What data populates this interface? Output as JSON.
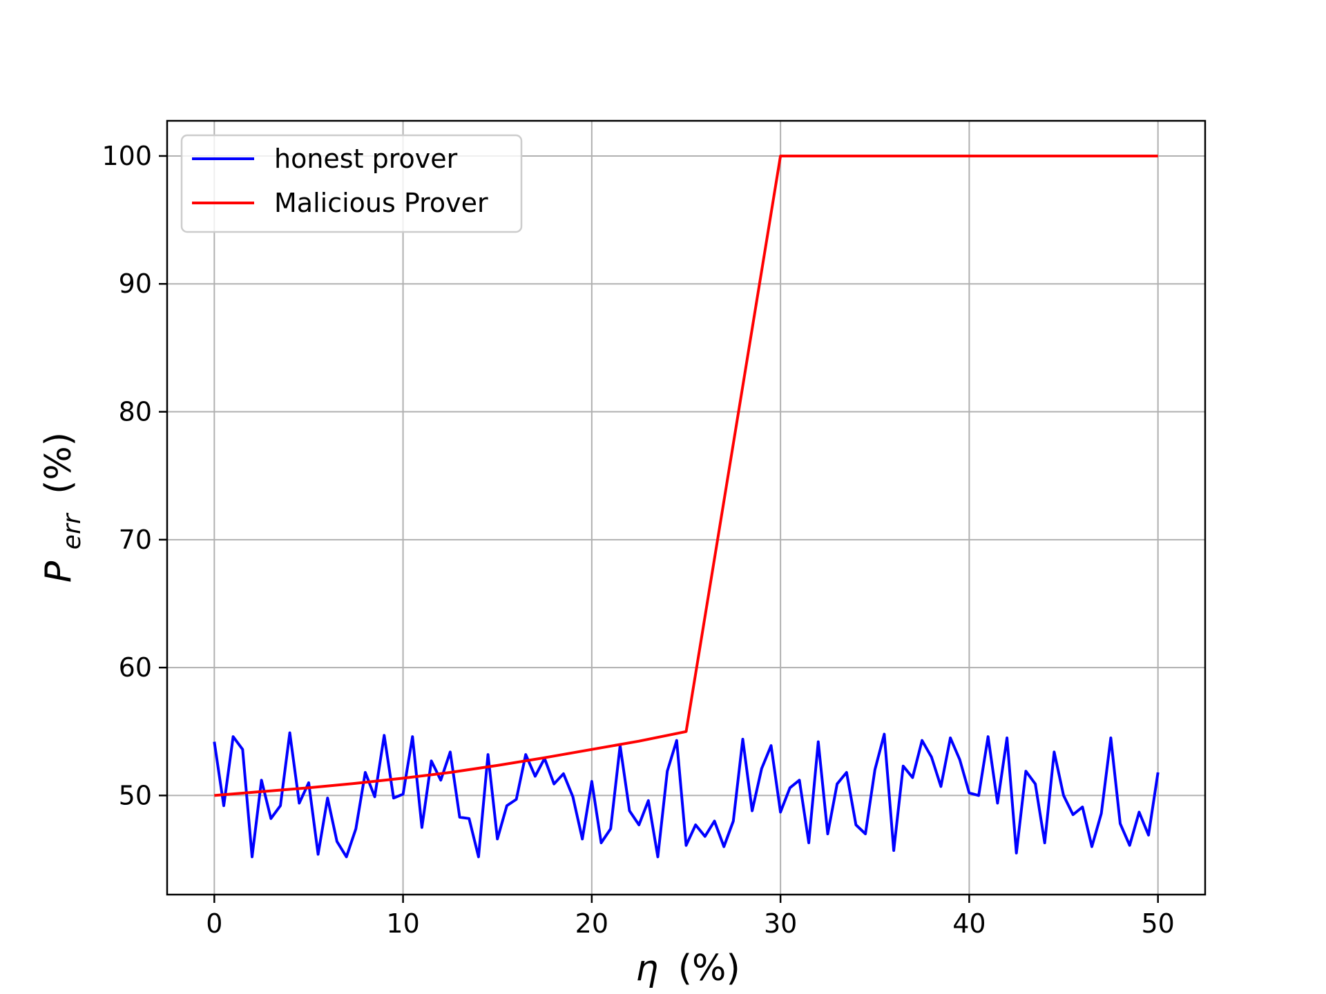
{
  "chart_data": {
    "type": "line",
    "xlabel": "η (%)",
    "xlabel_symbol": "η",
    "xlabel_unit": "(%)",
    "ylabel": "P_err (%)",
    "ylabel_symbol": "P",
    "ylabel_subscript": "err",
    "ylabel_unit": "(%)",
    "xlim": [
      -2.5,
      52.5
    ],
    "ylim": [
      42.25,
      102.75
    ],
    "x_ticks": [
      0,
      10,
      20,
      30,
      40,
      50
    ],
    "y_ticks": [
      50,
      60,
      70,
      80,
      90,
      100
    ],
    "grid": true,
    "legend_position": "upper-left",
    "series": [
      {
        "name": "honest prover",
        "color": "#0000ff",
        "x": [
          0,
          0.5,
          1,
          1.5,
          2,
          2.5,
          3,
          3.5,
          4,
          4.5,
          5,
          5.5,
          6,
          6.5,
          7,
          7.5,
          8,
          8.5,
          9,
          9.5,
          10,
          10.5,
          11,
          11.5,
          12,
          12.5,
          13,
          13.5,
          14,
          14.5,
          15,
          15.5,
          16,
          16.5,
          17,
          17.5,
          18,
          18.5,
          19,
          19.5,
          20,
          20.5,
          21,
          21.5,
          22,
          22.5,
          23,
          23.5,
          24,
          24.5,
          25,
          25.5,
          26,
          26.5,
          27,
          27.5,
          28,
          28.5,
          29,
          29.5,
          30,
          30.5,
          31,
          31.5,
          32,
          32.5,
          33,
          33.5,
          34,
          34.5,
          35,
          35.5,
          36,
          36.5,
          37,
          37.5,
          38,
          38.5,
          39,
          39.5,
          40,
          40.5,
          41,
          41.5,
          42,
          42.5,
          43,
          43.5,
          44,
          44.5,
          45,
          45.5,
          46,
          46.5,
          47,
          47.5,
          48,
          48.5,
          49,
          49.5,
          50
        ],
        "y": [
          54.2,
          49.2,
          54.6,
          53.6,
          45.2,
          51.2,
          48.2,
          49.2,
          54.9,
          49.4,
          51.0,
          45.4,
          49.8,
          46.4,
          45.2,
          47.4,
          51.8,
          49.9,
          54.7,
          49.8,
          50.1,
          54.6,
          47.5,
          52.7,
          51.2,
          53.4,
          48.3,
          48.2,
          45.2,
          53.2,
          46.6,
          49.2,
          49.7,
          53.2,
          51.5,
          52.9,
          50.9,
          51.7,
          49.9,
          46.6,
          51.1,
          46.3,
          47.4,
          53.9,
          48.8,
          47.7,
          49.6,
          45.2,
          51.9,
          54.3,
          46.1,
          47.7,
          46.8,
          48.0,
          46.0,
          48.0,
          54.4,
          48.8,
          52.1,
          53.9,
          48.7,
          50.6,
          51.2,
          46.3,
          54.2,
          47.0,
          50.9,
          51.8,
          47.7,
          47.0,
          52.0,
          54.8,
          45.7,
          52.3,
          51.4,
          54.3,
          53.0,
          50.7,
          54.5,
          52.8,
          50.2,
          50.0,
          54.6,
          49.4,
          54.5,
          45.5,
          51.9,
          50.9,
          46.3,
          53.4,
          50.0,
          48.5,
          49.1,
          46.0,
          48.6,
          54.5,
          47.8,
          46.1,
          48.7,
          46.9,
          51.8
        ]
      },
      {
        "name": "Malicious Prover",
        "color": "#ff0000",
        "x": [
          0,
          2.5,
          5,
          7.5,
          10,
          12.5,
          15,
          17.5,
          20,
          22.5,
          25,
          30,
          35,
          40,
          45,
          50
        ],
        "y": [
          50.0,
          50.3,
          50.6,
          50.95,
          51.35,
          51.8,
          52.35,
          52.95,
          53.6,
          54.25,
          55.0,
          100,
          100,
          100,
          100,
          100
        ]
      }
    ]
  }
}
